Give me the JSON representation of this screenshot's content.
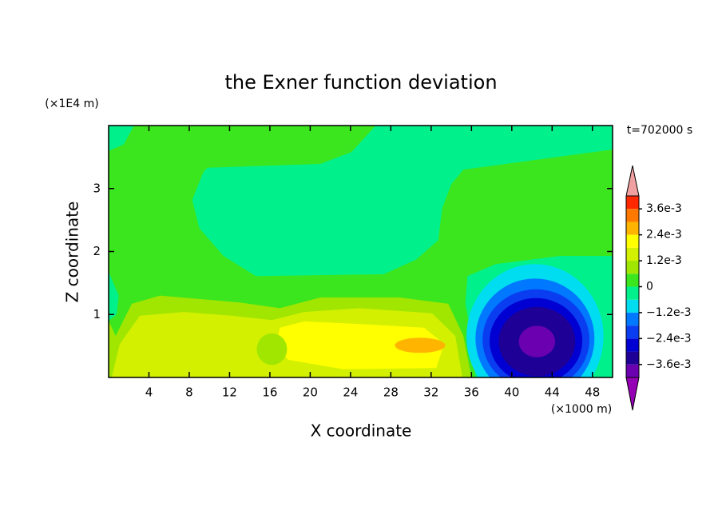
{
  "chart_data": {
    "type": "contour",
    "title": "the Exner function deviation",
    "xlabel": "X coordinate",
    "ylabel": "Z coordinate",
    "x_unit_label": "(×1000 m)",
    "y_unit_label": "(×1E4 m)",
    "time_label": "t=702000 s",
    "xlim": [
      0,
      50
    ],
    "xticks": [
      4,
      8,
      12,
      16,
      20,
      24,
      28,
      32,
      36,
      40,
      44,
      48
    ],
    "ylim": [
      0,
      4
    ],
    "yticks": [
      1,
      2,
      3
    ],
    "levels": [
      -0.0042,
      -0.0036,
      -0.003,
      -0.0024,
      -0.0018,
      -0.0012,
      -0.0006,
      0,
      0.0006,
      0.0012,
      0.0018,
      0.0024,
      0.003,
      0.0036,
      0.0042
    ],
    "colors": [
      "#6a00b0",
      "#1e0096",
      "#0000d2",
      "#0a3cf0",
      "#0078ff",
      "#00dcf0",
      "#00f08c",
      "#3ce61e",
      "#a0e600",
      "#d2f000",
      "#ffff00",
      "#ffb400",
      "#ff7800",
      "#ff2800"
    ],
    "over_color": "#f0a0a0",
    "under_color": "#9600b4",
    "colorbar_ticks": [
      {
        "value": 0.0036,
        "label": "3.6e-3"
      },
      {
        "value": 0.0024,
        "label": "2.4e-3"
      },
      {
        "value": 0.0012,
        "label": "1.2e-3"
      },
      0,
      {
        "value": -0.0012,
        "label": "−1.2e-3"
      },
      {
        "value": -0.0024,
        "label": "−2.4e-3"
      },
      {
        "value": -0.0036,
        "label": "−3.6e-3"
      }
    ]
  }
}
